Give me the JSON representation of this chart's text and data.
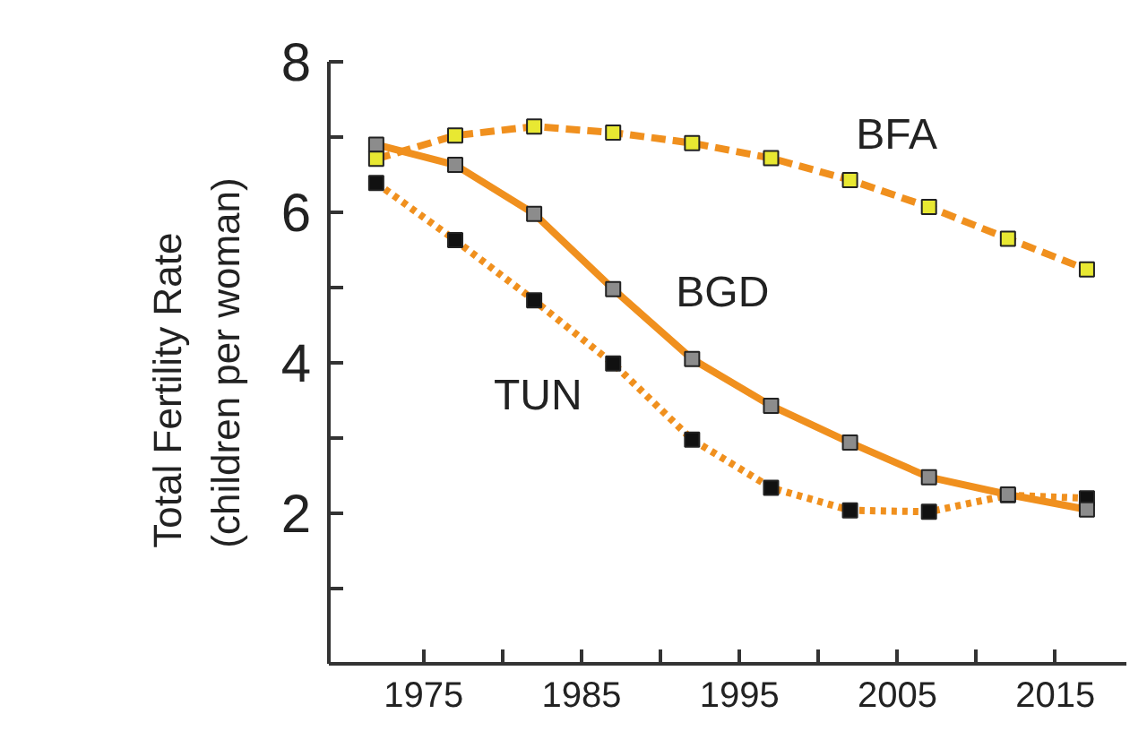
{
  "chart_data": {
    "type": "line",
    "ylabel": "Total Fertility Rate\n(children per woman)",
    "x": [
      1972,
      1977,
      1982,
      1987,
      1992,
      1997,
      2002,
      2007,
      2012,
      2017
    ],
    "xlim": [
      1969,
      2019.5
    ],
    "ylim": [
      0,
      8
    ],
    "xticks": [
      1975,
      {
        "value": 1980,
        "label": null
      },
      1985,
      {
        "value": 1990,
        "label": null
      },
      1995,
      {
        "value": 2000,
        "label": null
      },
      2005,
      {
        "value": 2010,
        "label": null
      },
      2015
    ],
    "yticks": [
      {
        "value": 1,
        "label": null
      },
      2,
      {
        "value": 3,
        "label": null
      },
      4,
      {
        "value": 5,
        "label": null
      },
      6,
      {
        "value": 7,
        "label": null
      },
      8
    ],
    "grid": false,
    "marker": "square",
    "series": [
      {
        "name": "BFA",
        "color": "#f0901e",
        "line_style": "dashed",
        "colors": [
          "#e8e832",
          "#e8e832",
          "#e8e832",
          "#e8e832",
          "#e8e832",
          "#e8e832",
          "#e8e832",
          "#e8e832",
          "#e8e832",
          "#e8e832"
        ],
        "values": [
          6.71,
          7.02,
          7.14,
          7.06,
          6.92,
          6.72,
          6.43,
          6.07,
          5.65,
          5.24
        ]
      },
      {
        "name": "BGD",
        "color": "#f0901e",
        "line_style": "solid",
        "colors": [
          "#8c8c8c",
          "#8c8c8c",
          "#8c8c8c",
          "#8c8c8c",
          "#8c8c8c",
          "#8c8c8c",
          "#8c8c8c",
          "#8c8c8c",
          "#8c8c8c",
          "#8c8c8c"
        ],
        "values": [
          6.9,
          6.63,
          5.98,
          4.98,
          4.05,
          3.43,
          2.94,
          2.48,
          2.25,
          2.05
        ]
      },
      {
        "name": "TUN",
        "color": "#f0901e",
        "line_style": "dotted",
        "colors": [
          "#111111",
          "#111111",
          "#111111",
          "#111111",
          "#111111",
          "#111111",
          "#111111",
          "#111111",
          "#111111",
          "#111111"
        ],
        "values": [
          6.39,
          5.63,
          4.83,
          3.99,
          2.98,
          2.34,
          2.04,
          2.02,
          2.24,
          2.2
        ]
      }
    ]
  }
}
